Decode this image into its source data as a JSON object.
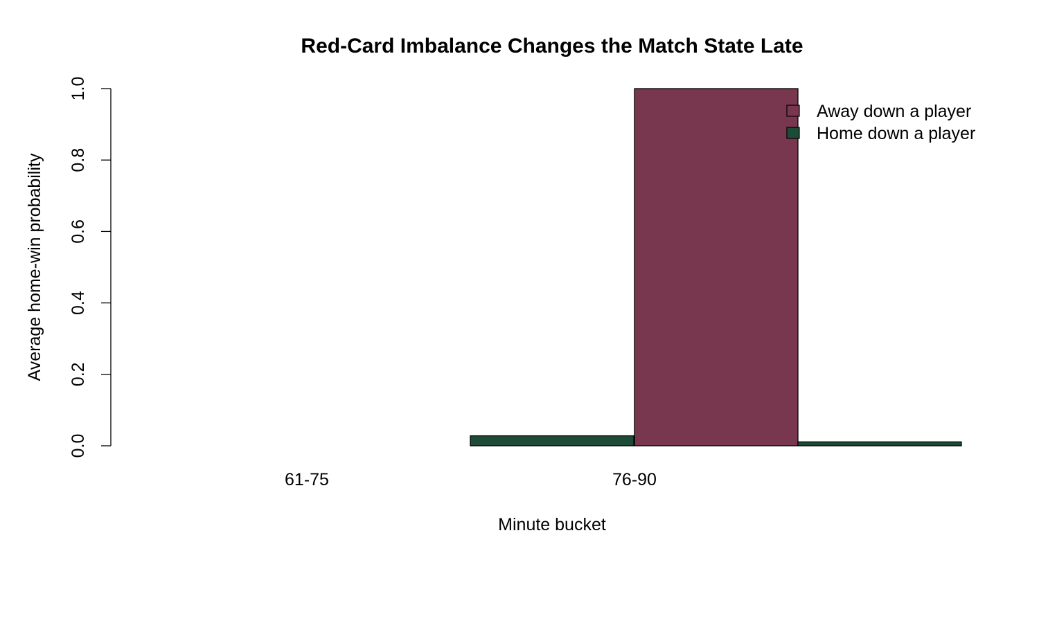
{
  "chart_data": {
    "type": "bar",
    "title": "Red-Card Imbalance Changes the Match State Late",
    "xlabel": "Minute bucket",
    "ylabel": "Average home-win probability",
    "categories": [
      "61-75",
      "76-90"
    ],
    "series": [
      {
        "name": "Away down a player",
        "color": "#78364f",
        "values": [
          null,
          1.0
        ]
      },
      {
        "name": "Home down a player",
        "color": "#1d4b37",
        "values": [
          0.028,
          0.011
        ]
      }
    ],
    "ylim": [
      0,
      1
    ],
    "yticks": [
      "0.0",
      "0.2",
      "0.4",
      "0.6",
      "0.8",
      "1.0"
    ],
    "grid": false,
    "legend_position": "top-right"
  }
}
